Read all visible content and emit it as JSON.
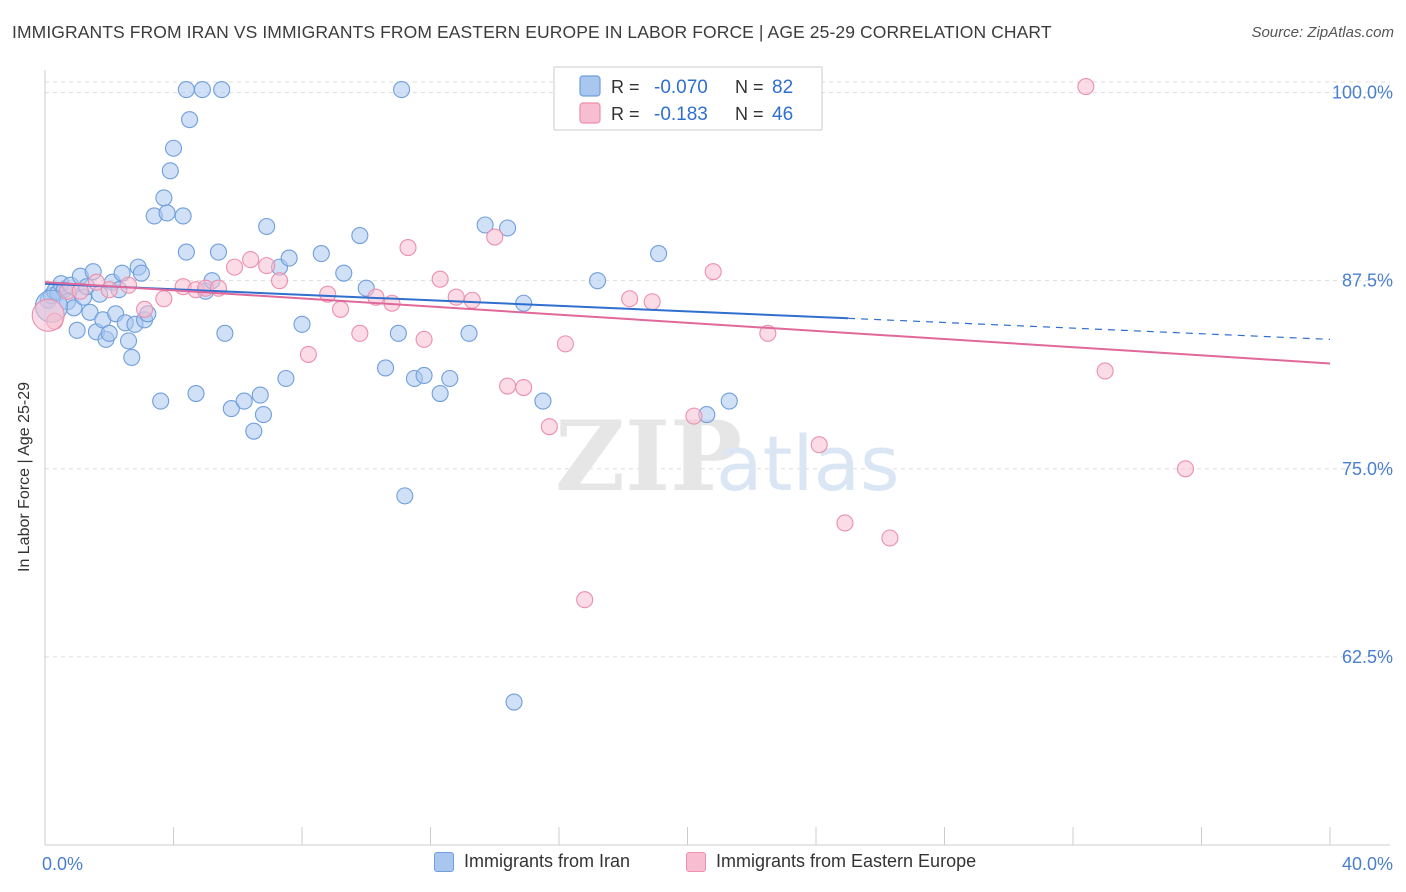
{
  "header": {
    "title": "IMMIGRANTS FROM IRAN VS IMMIGRANTS FROM EASTERN EUROPE IN LABOR FORCE | AGE 25-29 CORRELATION CHART",
    "source": "Source: ZipAtlas.com"
  },
  "watermark": {
    "zip": "ZIP",
    "atlas": "atlas"
  },
  "colors": {
    "iran_fill": "#a9c6ef",
    "iran_stroke": "#6f9fdc",
    "iran_line": "#2f6fce",
    "ee_fill": "#f7bdd0",
    "ee_stroke": "#ec8fae",
    "ee_line": "#e0689a",
    "tick_label": "#4a7fd0"
  },
  "legend": {
    "rows": [
      {
        "r_label": "R =",
        "r_value": "-0.070",
        "n_label": "N =",
        "n_value": "82"
      },
      {
        "r_label": "R =",
        "r_value": "-0.183",
        "n_label": "N =",
        "n_value": "46"
      }
    ]
  },
  "bottom_legend": {
    "iran": "Immigrants from Iran",
    "ee": "Immigrants from Eastern Europe"
  },
  "chart_data": {
    "type": "scatter",
    "xlabel": "",
    "ylabel": "In Labor Force | Age 25-29",
    "xlim": [
      0,
      40
    ],
    "ylim": [
      50,
      101.5
    ],
    "x_tick_labels": [
      {
        "value": 0,
        "label": "0.0%"
      },
      {
        "value": 40,
        "label": "40.0%"
      }
    ],
    "y_tick_labels": [
      {
        "value": 100,
        "label": "100.0%"
      },
      {
        "value": 87.5,
        "label": "87.5%"
      },
      {
        "value": 75,
        "label": "75.0%"
      },
      {
        "value": 62.5,
        "label": "62.5%"
      }
    ],
    "grid": true,
    "legend_position": "top-center",
    "series": [
      {
        "name": "Immigrants from Iran",
        "r": -0.07,
        "n": 82,
        "trend": {
          "x0": 0,
          "y0": 87.3,
          "x1": 25,
          "y1": 85.0,
          "dash_x1": 40,
          "dash_y1": 83.6
        },
        "points": [
          [
            0.1,
            86.2
          ],
          [
            0.2,
            86.5
          ],
          [
            0.3,
            86.8
          ],
          [
            0.4,
            86.7
          ],
          [
            0.5,
            87.3
          ],
          [
            0.6,
            86.9
          ],
          [
            0.7,
            86.1
          ],
          [
            0.8,
            87.2
          ],
          [
            0.9,
            85.7
          ],
          [
            1.0,
            84.2
          ],
          [
            1.1,
            87.8
          ],
          [
            1.2,
            86.4
          ],
          [
            1.3,
            87.1
          ],
          [
            1.4,
            85.4
          ],
          [
            1.5,
            88.1
          ],
          [
            1.6,
            84.1
          ],
          [
            1.7,
            86.6
          ],
          [
            1.8,
            84.9
          ],
          [
            1.9,
            83.6
          ],
          [
            2.0,
            84.0
          ],
          [
            2.1,
            87.4
          ],
          [
            2.2,
            85.3
          ],
          [
            2.3,
            86.9
          ],
          [
            2.4,
            88.0
          ],
          [
            2.5,
            84.7
          ],
          [
            2.6,
            83.5
          ],
          [
            2.7,
            82.4
          ],
          [
            2.8,
            84.6
          ],
          [
            2.9,
            88.4
          ],
          [
            3.0,
            88.0
          ],
          [
            3.1,
            84.9
          ],
          [
            3.2,
            85.3
          ],
          [
            3.4,
            91.8
          ],
          [
            3.6,
            79.5
          ],
          [
            3.7,
            93.0
          ],
          [
            3.9,
            94.8
          ],
          [
            4.0,
            96.3
          ],
          [
            3.8,
            92.0
          ],
          [
            4.3,
            91.8
          ],
          [
            4.4,
            89.4
          ],
          [
            4.7,
            80.0
          ],
          [
            5.0,
            86.8
          ],
          [
            5.4,
            89.4
          ],
          [
            4.5,
            98.2
          ],
          [
            5.2,
            87.5
          ],
          [
            5.6,
            84.0
          ],
          [
            5.8,
            79.0
          ],
          [
            6.2,
            79.5
          ],
          [
            6.5,
            77.5
          ],
          [
            6.7,
            79.9
          ],
          [
            6.9,
            91.1
          ],
          [
            6.8,
            78.6
          ],
          [
            7.3,
            88.4
          ],
          [
            7.5,
            81.0
          ],
          [
            7.6,
            89.0
          ],
          [
            8.0,
            84.6
          ],
          [
            8.6,
            89.3
          ],
          [
            9.3,
            88.0
          ],
          [
            9.8,
            90.5
          ],
          [
            10.0,
            87.0
          ],
          [
            11.0,
            84.0
          ],
          [
            10.6,
            81.7
          ],
          [
            11.2,
            73.2
          ],
          [
            11.5,
            81.0
          ],
          [
            11.8,
            81.2
          ],
          [
            12.3,
            80.0
          ],
          [
            12.6,
            81.0
          ],
          [
            13.2,
            84.0
          ],
          [
            13.7,
            91.2
          ],
          [
            14.4,
            91.0
          ],
          [
            14.9,
            86.0
          ],
          [
            15.5,
            79.5
          ],
          [
            17.2,
            87.5
          ],
          [
            19.1,
            89.3
          ],
          [
            20.6,
            78.6
          ],
          [
            21.3,
            79.5
          ],
          [
            4.4,
            100.2
          ],
          [
            4.9,
            100.2
          ],
          [
            5.5,
            100.2
          ],
          [
            11.1,
            100.2
          ],
          [
            14.6,
            59.5
          ],
          [
            0.2,
            85.8
          ]
        ]
      },
      {
        "name": "Immigrants from Eastern Europe",
        "r": -0.183,
        "n": 46,
        "trend": {
          "x0": 0,
          "y0": 87.4,
          "x1": 40,
          "y1": 82.0
        },
        "points": [
          [
            0.3,
            84.8
          ],
          [
            0.7,
            86.8
          ],
          [
            1.1,
            86.8
          ],
          [
            1.6,
            87.4
          ],
          [
            2.0,
            86.9
          ],
          [
            2.6,
            87.2
          ],
          [
            3.1,
            85.6
          ],
          [
            3.7,
            86.3
          ],
          [
            4.3,
            87.1
          ],
          [
            4.7,
            86.9
          ],
          [
            5.0,
            87.0
          ],
          [
            5.4,
            87.0
          ],
          [
            5.9,
            88.4
          ],
          [
            6.4,
            88.9
          ],
          [
            6.9,
            88.5
          ],
          [
            7.3,
            87.5
          ],
          [
            8.2,
            82.6
          ],
          [
            8.8,
            86.6
          ],
          [
            9.2,
            85.6
          ],
          [
            9.8,
            84.0
          ],
          [
            10.3,
            86.4
          ],
          [
            10.8,
            86.0
          ],
          [
            11.3,
            89.7
          ],
          [
            11.8,
            83.6
          ],
          [
            12.3,
            87.6
          ],
          [
            12.8,
            86.4
          ],
          [
            13.3,
            86.2
          ],
          [
            14.0,
            90.4
          ],
          [
            14.4,
            80.5
          ],
          [
            14.9,
            80.4
          ],
          [
            15.7,
            77.8
          ],
          [
            16.2,
            83.3
          ],
          [
            16.8,
            66.3
          ],
          [
            18.2,
            86.3
          ],
          [
            18.9,
            86.1
          ],
          [
            20.2,
            78.5
          ],
          [
            20.8,
            88.1
          ],
          [
            21.5,
            100.4
          ],
          [
            22.5,
            84.0
          ],
          [
            24.1,
            76.6
          ],
          [
            24.9,
            71.4
          ],
          [
            26.3,
            70.4
          ],
          [
            32.4,
            100.4
          ],
          [
            33.0,
            81.5
          ],
          [
            35.5,
            75.0
          ],
          [
            0.1,
            85.2
          ]
        ]
      }
    ]
  }
}
